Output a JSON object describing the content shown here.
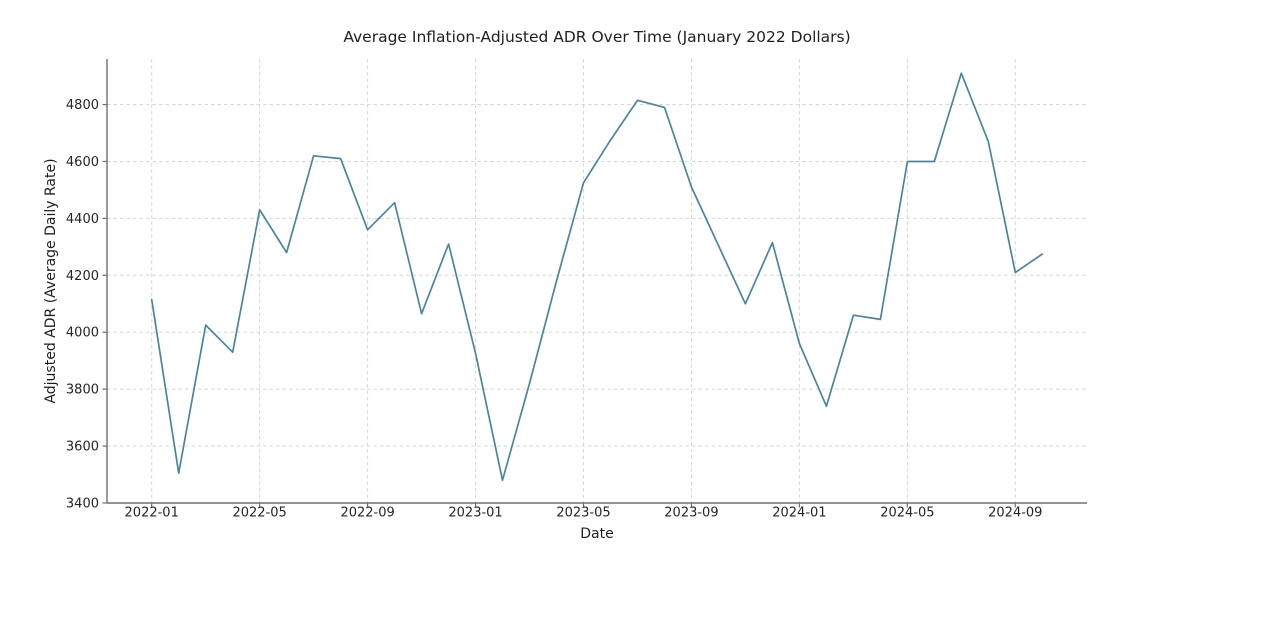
{
  "figure": {
    "background": "#ffffff"
  },
  "chart_data": {
    "type": "line",
    "title": "Average Inflation-Adjusted ADR Over Time (January 2022 Dollars)",
    "xlabel": "Date",
    "ylabel": "Adjusted ADR (Average Daily Rate)",
    "x": [
      "2022-01",
      "2022-02",
      "2022-03",
      "2022-04",
      "2022-05",
      "2022-06",
      "2022-07",
      "2022-08",
      "2022-09",
      "2022-10",
      "2022-11",
      "2022-12",
      "2023-01",
      "2023-02",
      "2023-03",
      "2023-04",
      "2023-05",
      "2023-06",
      "2023-07",
      "2023-08",
      "2023-09",
      "2023-10",
      "2023-11",
      "2023-12",
      "2024-01",
      "2024-02",
      "2024-03",
      "2024-04",
      "2024-05",
      "2024-06",
      "2024-07",
      "2024-08",
      "2024-09",
      "2024-10"
    ],
    "values": [
      4115,
      3505,
      4025,
      3930,
      4430,
      4280,
      4620,
      4610,
      4360,
      4455,
      4065,
      4310,
      3925,
      3480,
      3820,
      4180,
      4525,
      4675,
      4815,
      4790,
      4510,
      4305,
      4100,
      4315,
      3960,
      3740,
      4060,
      4045,
      4600,
      4600,
      4910,
      4670,
      4210,
      4275
    ],
    "x_tick_labels": [
      "2022-01",
      "2022-05",
      "2022-09",
      "2023-01",
      "2023-05",
      "2023-09",
      "2024-01",
      "2024-05",
      "2024-09"
    ],
    "y_ticks": [
      3400,
      3600,
      3800,
      4000,
      4200,
      4400,
      4600,
      4800
    ],
    "ylim": [
      3400,
      4960
    ],
    "grid": true,
    "grid_style": "dashed",
    "legend": "none",
    "line_color": "#48869f",
    "grid_color": "#d6d6d6",
    "axis_color": "#6e6e6e",
    "text_color": "#262626"
  }
}
